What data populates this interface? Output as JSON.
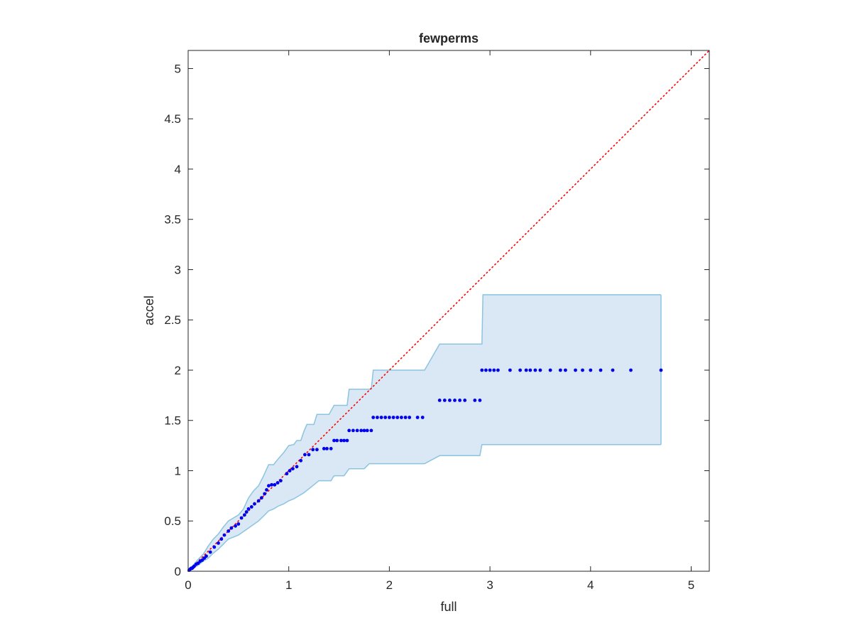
{
  "chart_data": {
    "type": "scatter",
    "title": "fewperms",
    "xlabel": "full",
    "ylabel": "accel",
    "xlim": [
      0,
      5.18
    ],
    "ylim": [
      0,
      5.18
    ],
    "xticks": [
      "0",
      "1",
      "2",
      "3",
      "4",
      "5"
    ],
    "yticks": [
      "0",
      "0.5",
      "1",
      "1.5",
      "2",
      "2.5",
      "3",
      "3.5",
      "4",
      "4.5",
      "5"
    ],
    "grid": false,
    "colors": {
      "points": "#0000ee",
      "reference_line": "#ff0000",
      "band_fill": "#d9e8f4",
      "band_edge": "#8cc4e0",
      "axes": "#262626"
    },
    "reference_line": {
      "style": "dotted",
      "from": [
        0,
        0
      ],
      "to": [
        5.18,
        5.18
      ]
    },
    "band": {
      "upper": [
        [
          0,
          0
        ],
        [
          0.05,
          0.06
        ],
        [
          0.1,
          0.12
        ],
        [
          0.15,
          0.17
        ],
        [
          0.2,
          0.25
        ],
        [
          0.25,
          0.32
        ],
        [
          0.3,
          0.37
        ],
        [
          0.35,
          0.44
        ],
        [
          0.4,
          0.5
        ],
        [
          0.45,
          0.53
        ],
        [
          0.5,
          0.56
        ],
        [
          0.55,
          0.62
        ],
        [
          0.6,
          0.73
        ],
        [
          0.65,
          0.8
        ],
        [
          0.7,
          0.85
        ],
        [
          0.75,
          0.95
        ],
        [
          0.8,
          1.06
        ],
        [
          0.85,
          1.06
        ],
        [
          0.88,
          1.1
        ],
        [
          0.95,
          1.18
        ],
        [
          1.0,
          1.25
        ],
        [
          1.05,
          1.26
        ],
        [
          1.08,
          1.3
        ],
        [
          1.12,
          1.3
        ],
        [
          1.15,
          1.39
        ],
        [
          1.18,
          1.46
        ],
        [
          1.25,
          1.46
        ],
        [
          1.28,
          1.56
        ],
        [
          1.4,
          1.56
        ],
        [
          1.45,
          1.65
        ],
        [
          1.58,
          1.65
        ],
        [
          1.6,
          1.81
        ],
        [
          1.82,
          1.81
        ],
        [
          1.84,
          2.0
        ],
        [
          2.35,
          2.0
        ],
        [
          2.5,
          2.26
        ],
        [
          2.92,
          2.26
        ],
        [
          2.93,
          2.75
        ],
        [
          4.7,
          2.75
        ]
      ],
      "lower": [
        [
          0,
          0
        ],
        [
          0.05,
          0.03
        ],
        [
          0.1,
          0.06
        ],
        [
          0.15,
          0.1
        ],
        [
          0.2,
          0.13
        ],
        [
          0.25,
          0.18
        ],
        [
          0.3,
          0.22
        ],
        [
          0.35,
          0.27
        ],
        [
          0.4,
          0.32
        ],
        [
          0.45,
          0.34
        ],
        [
          0.5,
          0.36
        ],
        [
          0.6,
          0.43
        ],
        [
          0.7,
          0.5
        ],
        [
          0.75,
          0.55
        ],
        [
          0.8,
          0.6
        ],
        [
          0.85,
          0.62
        ],
        [
          0.9,
          0.65
        ],
        [
          0.95,
          0.67
        ],
        [
          1.0,
          0.7
        ],
        [
          1.05,
          0.72
        ],
        [
          1.1,
          0.75
        ],
        [
          1.15,
          0.78
        ],
        [
          1.2,
          0.82
        ],
        [
          1.25,
          0.86
        ],
        [
          1.3,
          0.9
        ],
        [
          1.42,
          0.9
        ],
        [
          1.45,
          0.95
        ],
        [
          1.55,
          0.95
        ],
        [
          1.6,
          1.02
        ],
        [
          1.75,
          1.02
        ],
        [
          1.8,
          1.07
        ],
        [
          2.35,
          1.07
        ],
        [
          2.5,
          1.15
        ],
        [
          2.9,
          1.15
        ],
        [
          2.92,
          1.26
        ],
        [
          4.7,
          1.26
        ]
      ]
    },
    "points": [
      [
        0.01,
        0.01
      ],
      [
        0.02,
        0.02
      ],
      [
        0.03,
        0.03
      ],
      [
        0.04,
        0.03
      ],
      [
        0.05,
        0.04
      ],
      [
        0.06,
        0.05
      ],
      [
        0.08,
        0.07
      ],
      [
        0.1,
        0.08
      ],
      [
        0.12,
        0.1
      ],
      [
        0.14,
        0.11
      ],
      [
        0.16,
        0.13
      ],
      [
        0.18,
        0.15
      ],
      [
        0.22,
        0.19
      ],
      [
        0.26,
        0.24
      ],
      [
        0.3,
        0.28
      ],
      [
        0.33,
        0.32
      ],
      [
        0.36,
        0.36
      ],
      [
        0.4,
        0.4
      ],
      [
        0.43,
        0.43
      ],
      [
        0.47,
        0.45
      ],
      [
        0.5,
        0.47
      ],
      [
        0.53,
        0.53
      ],
      [
        0.56,
        0.56
      ],
      [
        0.58,
        0.59
      ],
      [
        0.6,
        0.62
      ],
      [
        0.63,
        0.64
      ],
      [
        0.66,
        0.67
      ],
      [
        0.7,
        0.7
      ],
      [
        0.73,
        0.73
      ],
      [
        0.76,
        0.77
      ],
      [
        0.78,
        0.81
      ],
      [
        0.8,
        0.85
      ],
      [
        0.83,
        0.86
      ],
      [
        0.86,
        0.86
      ],
      [
        0.89,
        0.88
      ],
      [
        0.92,
        0.9
      ],
      [
        0.98,
        0.97
      ],
      [
        1.01,
        1.0
      ],
      [
        1.04,
        1.02
      ],
      [
        1.08,
        1.04
      ],
      [
        1.12,
        1.1
      ],
      [
        1.16,
        1.16
      ],
      [
        1.2,
        1.16
      ],
      [
        1.24,
        1.21
      ],
      [
        1.28,
        1.21
      ],
      [
        1.35,
        1.22
      ],
      [
        1.38,
        1.22
      ],
      [
        1.42,
        1.22
      ],
      [
        1.45,
        1.3
      ],
      [
        1.48,
        1.3
      ],
      [
        1.52,
        1.3
      ],
      [
        1.55,
        1.3
      ],
      [
        1.58,
        1.3
      ],
      [
        1.6,
        1.4
      ],
      [
        1.64,
        1.4
      ],
      [
        1.68,
        1.4
      ],
      [
        1.72,
        1.4
      ],
      [
        1.75,
        1.4
      ],
      [
        1.78,
        1.4
      ],
      [
        1.82,
        1.4
      ],
      [
        1.84,
        1.53
      ],
      [
        1.88,
        1.53
      ],
      [
        1.92,
        1.53
      ],
      [
        1.96,
        1.53
      ],
      [
        2.0,
        1.53
      ],
      [
        2.04,
        1.53
      ],
      [
        2.08,
        1.53
      ],
      [
        2.12,
        1.53
      ],
      [
        2.16,
        1.53
      ],
      [
        2.2,
        1.53
      ],
      [
        2.28,
        1.53
      ],
      [
        2.33,
        1.53
      ],
      [
        2.5,
        1.7
      ],
      [
        2.55,
        1.7
      ],
      [
        2.6,
        1.7
      ],
      [
        2.65,
        1.7
      ],
      [
        2.7,
        1.7
      ],
      [
        2.75,
        1.7
      ],
      [
        2.85,
        1.7
      ],
      [
        2.9,
        1.7
      ],
      [
        2.92,
        2.0
      ],
      [
        2.96,
        2.0
      ],
      [
        3.0,
        2.0
      ],
      [
        3.04,
        2.0
      ],
      [
        3.08,
        2.0
      ],
      [
        3.2,
        2.0
      ],
      [
        3.3,
        2.0
      ],
      [
        3.36,
        2.0
      ],
      [
        3.4,
        2.0
      ],
      [
        3.45,
        2.0
      ],
      [
        3.5,
        2.0
      ],
      [
        3.6,
        2.0
      ],
      [
        3.7,
        2.0
      ],
      [
        3.75,
        2.0
      ],
      [
        3.85,
        2.0
      ],
      [
        3.92,
        2.0
      ],
      [
        4.0,
        2.0
      ],
      [
        4.1,
        2.0
      ],
      [
        4.22,
        2.0
      ],
      [
        4.4,
        2.0
      ],
      [
        4.7,
        2.0
      ]
    ]
  }
}
